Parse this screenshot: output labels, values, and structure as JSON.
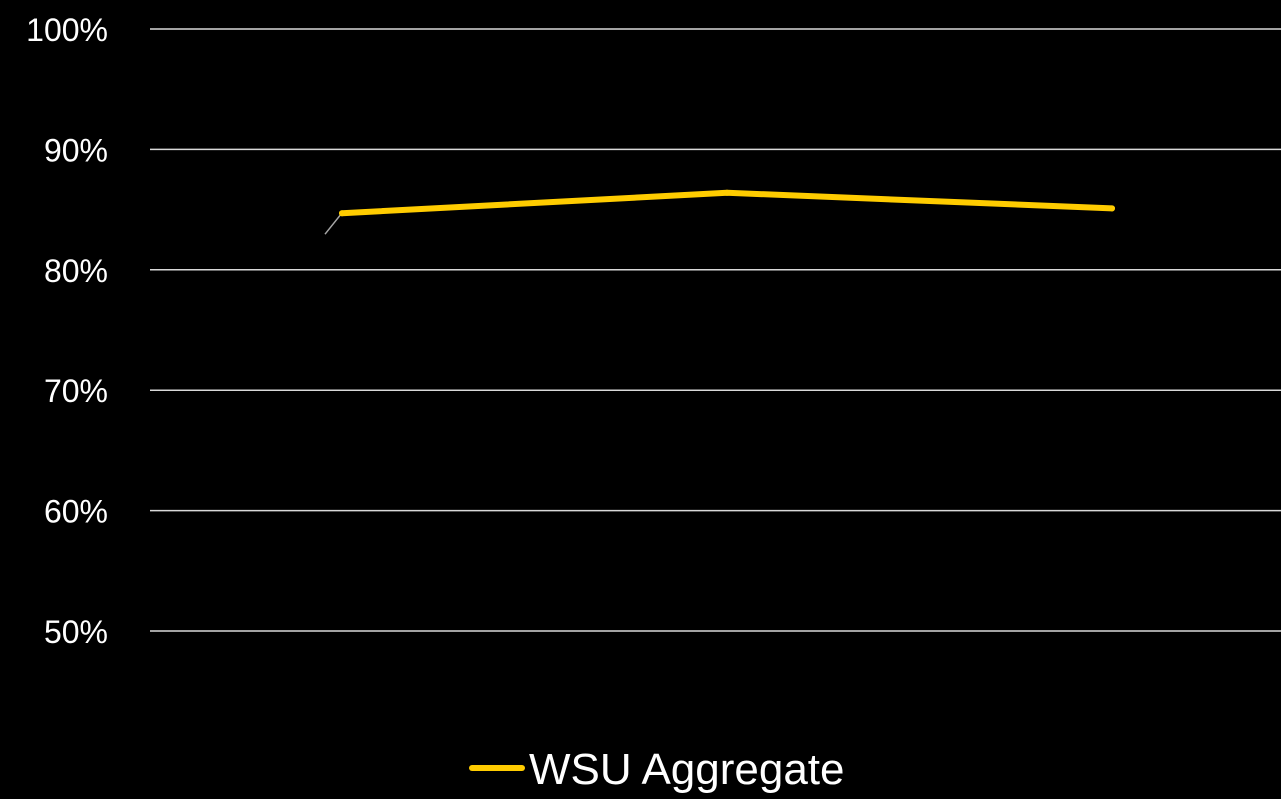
{
  "chart_data": {
    "type": "line",
    "title": "",
    "xlabel": "",
    "ylabel": "",
    "categories": [
      "",
      "",
      ""
    ],
    "ylim": [
      50,
      100
    ],
    "yticks": [
      100,
      90,
      80,
      70,
      60,
      50
    ],
    "ytick_labels": [
      "100%",
      "90%",
      "80%",
      "70%",
      "60%",
      "50%"
    ],
    "grid": true,
    "legend_position": "bottom",
    "series": [
      {
        "name": "WSU Aggregate",
        "color": "#ffcc00",
        "values": [
          84.7,
          86.4,
          85.1
        ]
      }
    ]
  }
}
